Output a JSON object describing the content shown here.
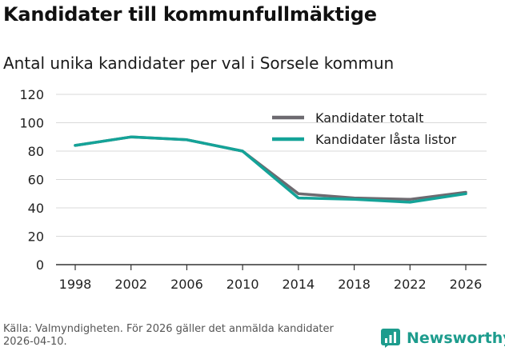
{
  "title": "Kandidater till kommunfullmäktige",
  "subtitle": "Antal unika kandidater per val i Sorsele kommun",
  "source": "Källa: Valmyndigheten. För 2026 gäller det anmälda kandidater 2026-04-10.",
  "brand": {
    "name": "Newsworthy",
    "icon": "newsworthy-logo-icon"
  },
  "colors": {
    "totalt": "#6d6a70",
    "lasta": "#14a398",
    "grid": "#d9d9d9",
    "axis": "#333333",
    "brand": "#1d9c8d"
  },
  "chart_data": {
    "type": "line",
    "title": "Kandidater till kommunfullmäktige",
    "subtitle": "Antal unika kandidater per val i Sorsele kommun",
    "xlabel": "",
    "ylabel": "",
    "x": [
      1998,
      2002,
      2006,
      2010,
      2014,
      2018,
      2022,
      2026
    ],
    "x_tick_labels": [
      "1998",
      "2002",
      "2006",
      "2010",
      "2014",
      "2018",
      "2022",
      "2026"
    ],
    "y_ticks": [
      0,
      20,
      40,
      60,
      80,
      100,
      120
    ],
    "y_tick_labels": [
      "0",
      "20",
      "40",
      "60",
      "80",
      "100",
      "120"
    ],
    "xlim": [
      1998,
      2026
    ],
    "ylim": [
      0,
      120
    ],
    "grid": true,
    "legend_position": "top-right",
    "series": [
      {
        "name": "Kandidater totalt",
        "color": "#6d6a70",
        "values": [
          84,
          90,
          88,
          80,
          50,
          47,
          46,
          51
        ]
      },
      {
        "name": "Kandidater låsta listor",
        "color": "#14a398",
        "values": [
          84,
          90,
          88,
          80,
          47,
          46,
          44,
          50
        ]
      }
    ]
  }
}
